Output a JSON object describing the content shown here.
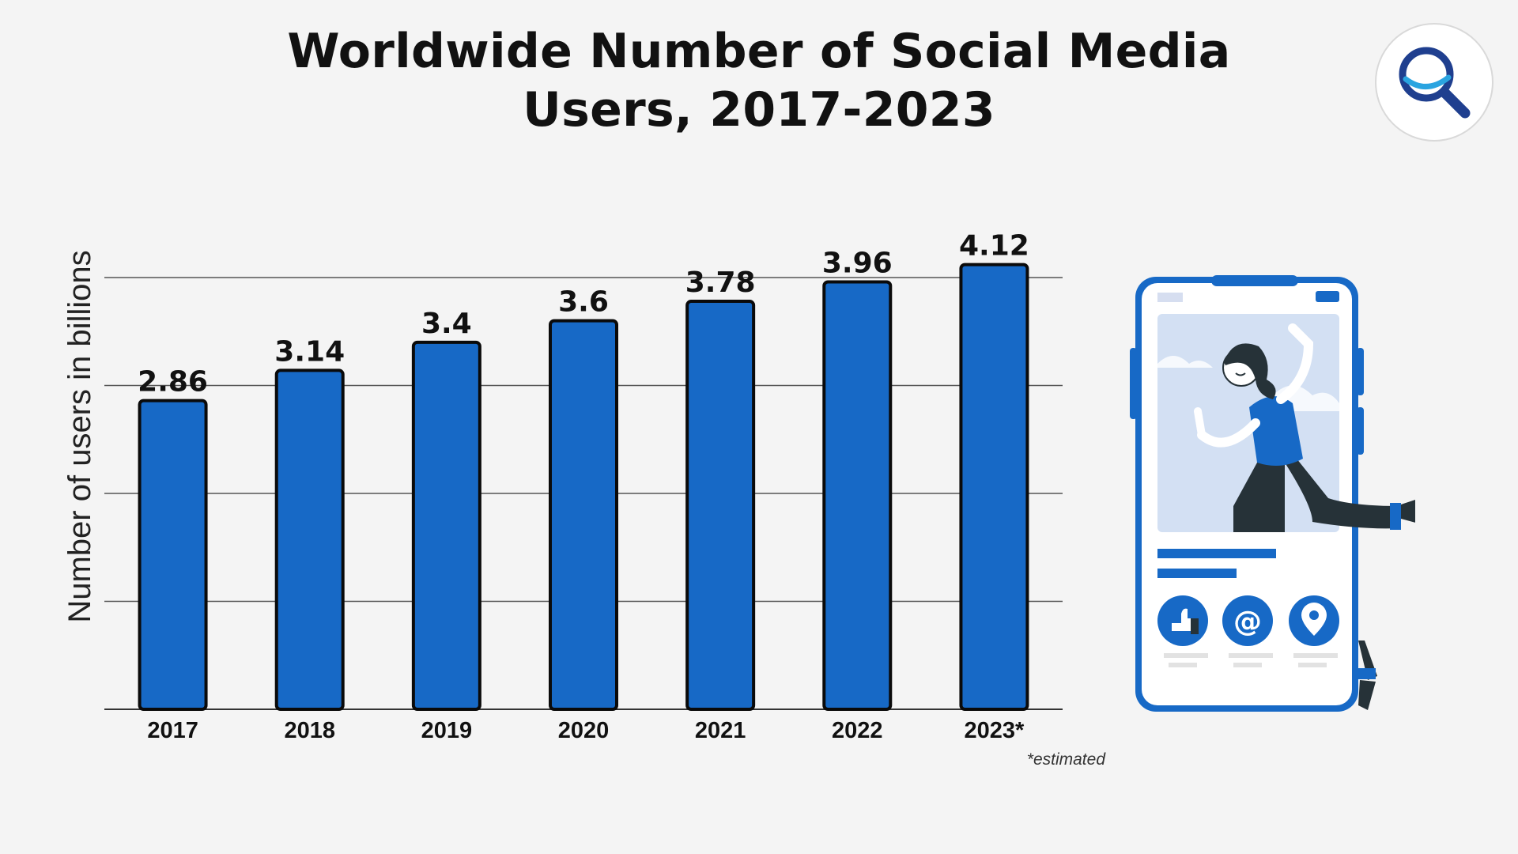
{
  "title_line1": "Worldwide Number of Social Media",
  "title_line2": "Users, 2017-2023",
  "footnote": "*estimated",
  "colors": {
    "bar": "#1769c6",
    "bar_stroke": "#0a0a0a",
    "grid": "#555555",
    "background": "#f4f4f4"
  },
  "chart_data": {
    "type": "bar",
    "title": "Worldwide Number of Social Media Users, 2017-2023",
    "ylabel": "Number of users in billions",
    "xlabel": "",
    "categories": [
      "2017",
      "2018",
      "2019",
      "2020",
      "2021",
      "2022",
      "2023*"
    ],
    "values": [
      2.86,
      3.14,
      3.4,
      3.6,
      3.78,
      3.96,
      4.12
    ],
    "data_labels": [
      "2.86",
      "3.14",
      "3.4",
      "3.6",
      "3.78",
      "3.96",
      "4.12"
    ],
    "ylim": [
      0,
      4
    ],
    "grid": true,
    "show_y_ticks": false
  },
  "icons": {
    "logo": "magnifier-icon",
    "illustration": "phone-social-media-illustration"
  }
}
